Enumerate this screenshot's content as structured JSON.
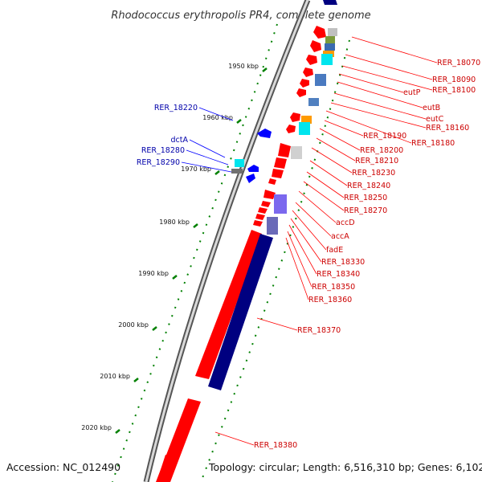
{
  "title": "Rhodococcus erythropolis PR4, complete genome",
  "accession_text": "Accession: NC_012490",
  "summary_text": "Topology: circular; Length: 6,516,310 bp; Genes: 6,102",
  "colors": {
    "forward_gene": "#ff0000",
    "reverse_gene": "#0000ff",
    "forward_label": "#cc0000",
    "reverse_label": "#0000aa",
    "backbone": "#8c8c8c",
    "tick": "#008000",
    "large_block": "#000080"
  },
  "ticks": [
    "1950 kbp",
    "1960 kbp",
    "1970 kbp",
    "1980 kbp",
    "1990 kbp",
    "2000 kbp",
    "2010 kbp",
    "2020 kbp"
  ],
  "forward_labels": [
    "RER_18070",
    "RER_18090",
    "RER_18100",
    "eutP",
    "eutB",
    "eutC",
    "RER_18160",
    "RER_18180",
    "RER_18190",
    "RER_18200",
    "RER_18210",
    "RER_18230",
    "RER_18240",
    "RER_18250",
    "RER_18270",
    "accD",
    "accA",
    "fadE",
    "RER_18330",
    "RER_18340",
    "RER_18350",
    "RER_18360",
    "RER_18370",
    "RER_18380"
  ],
  "reverse_labels": [
    "RER_18220",
    "dctA",
    "RER_18280",
    "RER_18290"
  ]
}
